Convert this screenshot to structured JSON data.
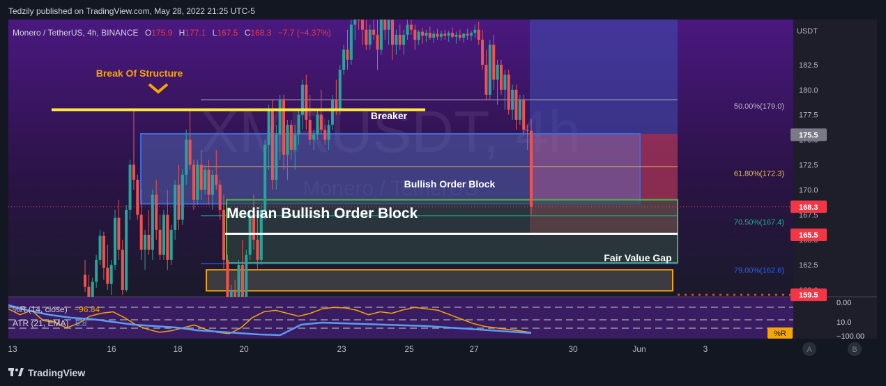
{
  "header": {
    "published": "Tedzily published on TradingView.com, May 28, 2022 21:25 UTC-5"
  },
  "footer": {
    "brand": "TradingView",
    "logo": "tradingview-logo"
  },
  "legend": {
    "symbol": "Monero / TetherUS, 4h, BINANCE",
    "o_label": "O",
    "o": "175.9",
    "h_label": "H",
    "h": "177.1",
    "l_label": "L",
    "l": "167.5",
    "c_label": "C",
    "c": "168.3",
    "change": "−7.7 (−4.37%)"
  },
  "watermark": {
    "line1": "XMRUSDT, 4h",
    "line2": "Monero / TetherUS"
  },
  "annotations": {
    "break_of_structure": "Break Of Structure",
    "breaker": "Breaker",
    "bullish_ob": "Bullish Order Block",
    "median_ob": "Median Bullish Order Block",
    "fvg": "Fair Value Gap"
  },
  "chart_data": {
    "type": "candlestick",
    "currency": "USDT",
    "price_ticks": [
      "182.5",
      "180.0",
      "177.5",
      "175.0",
      "172.5",
      "170.0",
      "167.5",
      "165.0",
      "162.5",
      "160.0"
    ],
    "ylim": [
      159.3,
      185.0
    ],
    "x_ticks": [
      "13",
      "16",
      "18",
      "20",
      "23",
      "25",
      "27",
      "30",
      "Jun",
      "3"
    ],
    "price_badges": [
      {
        "value": "175.5",
        "color": "#787b86"
      },
      {
        "value": "168.3",
        "color": "#f23645"
      },
      {
        "value": "165.5",
        "color": "#f23645"
      },
      {
        "value": "159.5",
        "color": "#f23645"
      }
    ],
    "fib_levels": [
      {
        "label": "50.00%(179.0)",
        "value": 179.0,
        "color": "#b2b5be"
      },
      {
        "label": "61.80%(172.3)",
        "value": 172.3,
        "color": "#e4c058"
      },
      {
        "label": "70.50%(167.4)",
        "value": 167.4,
        "color": "#22ab94"
      },
      {
        "label": "79.00%(162.6)",
        "value": 162.6,
        "color": "#2962ff"
      }
    ],
    "zones": [
      {
        "name": "breaker",
        "top": 175.6,
        "bottom": 168.6
      },
      {
        "name": "bullish-order-block",
        "top": 169.0,
        "bottom": 162.7
      },
      {
        "name": "fair-value-gap",
        "top": 162.0,
        "bottom": 159.9
      },
      {
        "name": "bos-line",
        "top": 178.0,
        "bottom": 178.0
      },
      {
        "name": "median-line",
        "top": 165.6,
        "bottom": 165.6
      },
      {
        "name": "position-short",
        "top": 175.6,
        "bottom": 165.5
      }
    ],
    "candles": [
      [
        161.5,
        163.0,
        159.8,
        160.3
      ],
      [
        160.3,
        161.5,
        158.5,
        159.0
      ],
      [
        159.0,
        161.2,
        158.0,
        160.8
      ],
      [
        160.8,
        163.5,
        160.2,
        163.0
      ],
      [
        163.0,
        166.0,
        162.5,
        165.4
      ],
      [
        165.4,
        165.8,
        161.0,
        162.2
      ],
      [
        162.2,
        164.5,
        160.0,
        160.6
      ],
      [
        160.6,
        163.0,
        159.5,
        162.5
      ],
      [
        162.5,
        168.0,
        162.0,
        167.2
      ],
      [
        167.2,
        169.0,
        163.0,
        164.0
      ],
      [
        164.0,
        165.0,
        159.5,
        160.0
      ],
      [
        160.0,
        168.5,
        159.8,
        168.0
      ],
      [
        168.0,
        173.0,
        167.0,
        172.5
      ],
      [
        172.5,
        178.0,
        170.0,
        171.0
      ],
      [
        171.0,
        171.5,
        167.0,
        167.5
      ],
      [
        167.5,
        170.0,
        163.0,
        164.0
      ],
      [
        164.0,
        166.0,
        162.0,
        165.5
      ],
      [
        165.5,
        168.0,
        163.5,
        164.0
      ],
      [
        164.0,
        170.0,
        163.0,
        169.5
      ],
      [
        169.5,
        171.0,
        165.0,
        166.0
      ],
      [
        166.0,
        167.5,
        163.0,
        163.5
      ],
      [
        163.5,
        168.0,
        163.0,
        167.5
      ],
      [
        167.5,
        170.0,
        162.0,
        163.0
      ],
      [
        163.0,
        166.5,
        162.5,
        166.0
      ],
      [
        166.0,
        171.0,
        165.0,
        170.5
      ],
      [
        170.5,
        172.5,
        166.0,
        167.0
      ],
      [
        167.0,
        172.0,
        166.5,
        171.5
      ],
      [
        171.5,
        176.0,
        170.5,
        175.0
      ],
      [
        175.0,
        178.0,
        172.0,
        172.5
      ],
      [
        172.5,
        173.0,
        168.0,
        169.0
      ],
      [
        169.0,
        173.0,
        168.5,
        172.5
      ],
      [
        172.5,
        174.0,
        169.0,
        170.0
      ],
      [
        170.0,
        172.5,
        169.5,
        172.0
      ],
      [
        172.0,
        173.0,
        168.5,
        169.5
      ],
      [
        169.5,
        172.0,
        168.0,
        171.5
      ],
      [
        171.5,
        174.0,
        170.0,
        170.5
      ],
      [
        170.5,
        171.0,
        167.0,
        168.0
      ],
      [
        168.0,
        169.5,
        162.0,
        163.0
      ],
      [
        163.0,
        163.5,
        158.0,
        158.5
      ],
      [
        158.5,
        160.5,
        157.0,
        160.0
      ],
      [
        160.0,
        161.0,
        158.0,
        158.5
      ],
      [
        158.5,
        163.0,
        158.0,
        162.5
      ],
      [
        162.5,
        165.0,
        158.5,
        159.0
      ],
      [
        159.0,
        164.0,
        158.0,
        163.5
      ],
      [
        163.5,
        168.0,
        163.0,
        167.5
      ],
      [
        167.5,
        169.5,
        164.0,
        165.0
      ],
      [
        165.0,
        168.0,
        162.0,
        163.0
      ],
      [
        163.0,
        168.5,
        162.5,
        168.0
      ],
      [
        168.0,
        175.0,
        167.0,
        174.5
      ],
      [
        174.5,
        178.5,
        172.0,
        178.0
      ],
      [
        178.0,
        179.0,
        170.0,
        171.0
      ],
      [
        171.0,
        176.5,
        170.0,
        175.5
      ],
      [
        175.5,
        179.5,
        173.0,
        179.0
      ],
      [
        179.0,
        179.5,
        172.0,
        173.5
      ],
      [
        173.5,
        177.0,
        171.0,
        176.5
      ],
      [
        176.5,
        177.0,
        173.0,
        174.0
      ],
      [
        174.0,
        176.5,
        172.0,
        175.5
      ],
      [
        175.5,
        178.0,
        174.5,
        177.5
      ],
      [
        177.5,
        181.0,
        176.0,
        180.5
      ],
      [
        180.5,
        181.5,
        176.0,
        177.0
      ],
      [
        177.0,
        179.5,
        174.5,
        175.0
      ],
      [
        175.0,
        176.0,
        174.0,
        175.5
      ],
      [
        175.5,
        178.0,
        175.0,
        177.5
      ],
      [
        177.5,
        180.0,
        175.5,
        176.0
      ],
      [
        176.0,
        176.5,
        174.5,
        175.0
      ],
      [
        175.0,
        177.0,
        174.0,
        176.5
      ],
      [
        176.5,
        179.5,
        176.0,
        179.0
      ],
      [
        179.0,
        181.0,
        177.5,
        178.0
      ],
      [
        178.0,
        182.5,
        177.5,
        182.0
      ],
      [
        182.0,
        184.5,
        181.5,
        184.0
      ],
      [
        184.0,
        186.0,
        182.0,
        183.0
      ],
      [
        183.0,
        187.0,
        182.5,
        186.5
      ],
      [
        186.5,
        189.0,
        185.0,
        188.5
      ],
      [
        188.5,
        190.0,
        186.0,
        187.0
      ],
      [
        187.0,
        188.0,
        184.5,
        186.0
      ],
      [
        186.0,
        187.0,
        184.0,
        184.5
      ],
      [
        184.5,
        186.5,
        184.0,
        186.0
      ],
      [
        186.0,
        187.5,
        185.0,
        185.5
      ],
      [
        185.5,
        187.0,
        182.0,
        184.0
      ],
      [
        184.0,
        188.0,
        183.5,
        187.5
      ],
      [
        187.5,
        189.0,
        185.0,
        186.0
      ],
      [
        186.0,
        187.5,
        184.5,
        187.0
      ],
      [
        187.0,
        188.0,
        183.0,
        184.5
      ],
      [
        184.5,
        186.0,
        183.5,
        185.5
      ],
      [
        185.5,
        186.5,
        184.0,
        184.5
      ],
      [
        184.5,
        186.0,
        183.5,
        185.5
      ],
      [
        185.5,
        187.0,
        185.0,
        186.5
      ],
      [
        186.5,
        187.5,
        185.5,
        186.0
      ],
      [
        186.0,
        186.5,
        184.0,
        185.0
      ],
      [
        185.0,
        186.0,
        184.5,
        185.8
      ],
      [
        185.8,
        186.2,
        184.6,
        185.4
      ],
      [
        185.4,
        186.0,
        184.8,
        185.7
      ],
      [
        185.7,
        186.3,
        185.0,
        185.2
      ],
      [
        185.2,
        185.9,
        184.7,
        185.6
      ],
      [
        185.6,
        186.1,
        185.0,
        185.3
      ],
      [
        185.3,
        185.9,
        184.9,
        185.6
      ],
      [
        185.6,
        186.0,
        185.0,
        185.4
      ],
      [
        185.4,
        185.9,
        184.8,
        185.7
      ],
      [
        185.7,
        186.2,
        185.1,
        185.3
      ],
      [
        185.3,
        185.8,
        184.6,
        185.5
      ],
      [
        185.5,
        186.0,
        184.9,
        185.2
      ],
      [
        185.2,
        185.7,
        184.7,
        185.6
      ],
      [
        185.6,
        186.1,
        185.0,
        185.4
      ],
      [
        185.4,
        185.9,
        184.9,
        185.7
      ],
      [
        185.7,
        186.5,
        185.2,
        186.0
      ],
      [
        186.0,
        186.8,
        184.5,
        185.0
      ],
      [
        185.0,
        186.0,
        182.0,
        182.5
      ],
      [
        182.5,
        184.0,
        179.0,
        179.5
      ],
      [
        179.5,
        185.0,
        179.0,
        184.5
      ],
      [
        184.5,
        185.5,
        180.0,
        181.0
      ],
      [
        181.0,
        183.0,
        178.5,
        182.5
      ],
      [
        182.5,
        183.0,
        179.5,
        180.0
      ],
      [
        180.0,
        182.0,
        178.0,
        181.5
      ],
      [
        181.5,
        182.0,
        177.5,
        178.0
      ],
      [
        178.0,
        180.5,
        177.0,
        180.0
      ],
      [
        180.0,
        180.5,
        176.0,
        177.0
      ],
      [
        177.0,
        179.5,
        176.5,
        179.0
      ],
      [
        179.0,
        179.5,
        175.5,
        176.0
      ],
      [
        176.0,
        176.5,
        174.0,
        175.9
      ],
      [
        175.9,
        177.1,
        167.5,
        168.3
      ]
    ]
  },
  "indicators": {
    "wr_label": "%R (14, close)",
    "wr_value": "−96.84",
    "atr_label": "ATR (21, EMA)",
    "atr_value": "6.8",
    "scale_top": "0.00",
    "scale_mid": "10.0",
    "scale_bottom": "−100.00",
    "badge": "%R"
  },
  "controls": {
    "a": "A",
    "b": "B"
  }
}
